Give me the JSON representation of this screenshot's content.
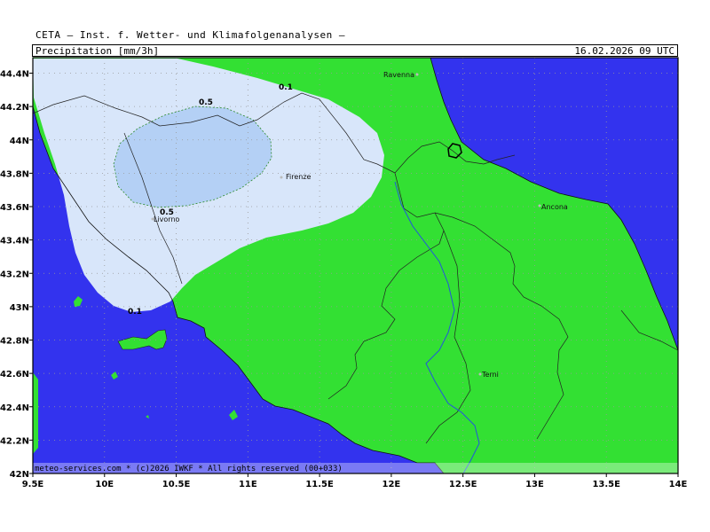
{
  "header": {
    "institution": "CETA — Inst. f. Wetter- und Klimafolgenanalysen —",
    "title": "Precipitation [mm/3h]",
    "valid_time": "16.02.2026 09 UTC"
  },
  "axes": {
    "x_ticks": [
      "9.5E",
      "10E",
      "10.5E",
      "11E",
      "11.5E",
      "12E",
      "12.5E",
      "13E",
      "13.5E",
      "14E"
    ],
    "y_ticks": [
      "44.4N",
      "44.2N",
      "44N",
      "43.8N",
      "43.6N",
      "43.4N",
      "43.2N",
      "43N",
      "42.8N",
      "42.6N",
      "42.4N",
      "42.2N",
      "42N"
    ]
  },
  "cities": {
    "ravenna": "Ravenna",
    "firenze": "Firenze",
    "livorno": "Livorno",
    "ancona": "Ancona",
    "terni": "Terni"
  },
  "contours": {
    "c01_top": "0.1",
    "c05_top": "0.5",
    "c05_left": "0.5",
    "c01_bottom": "0.1"
  },
  "credit": "meteo-services.com * (c)2026 IWKF * All rights reserved (00+033)",
  "colors": {
    "sea": "#3333ee",
    "land": "#33e033",
    "precip_light": "#d8e6fa",
    "precip_medium": "#b4d0f5"
  }
}
